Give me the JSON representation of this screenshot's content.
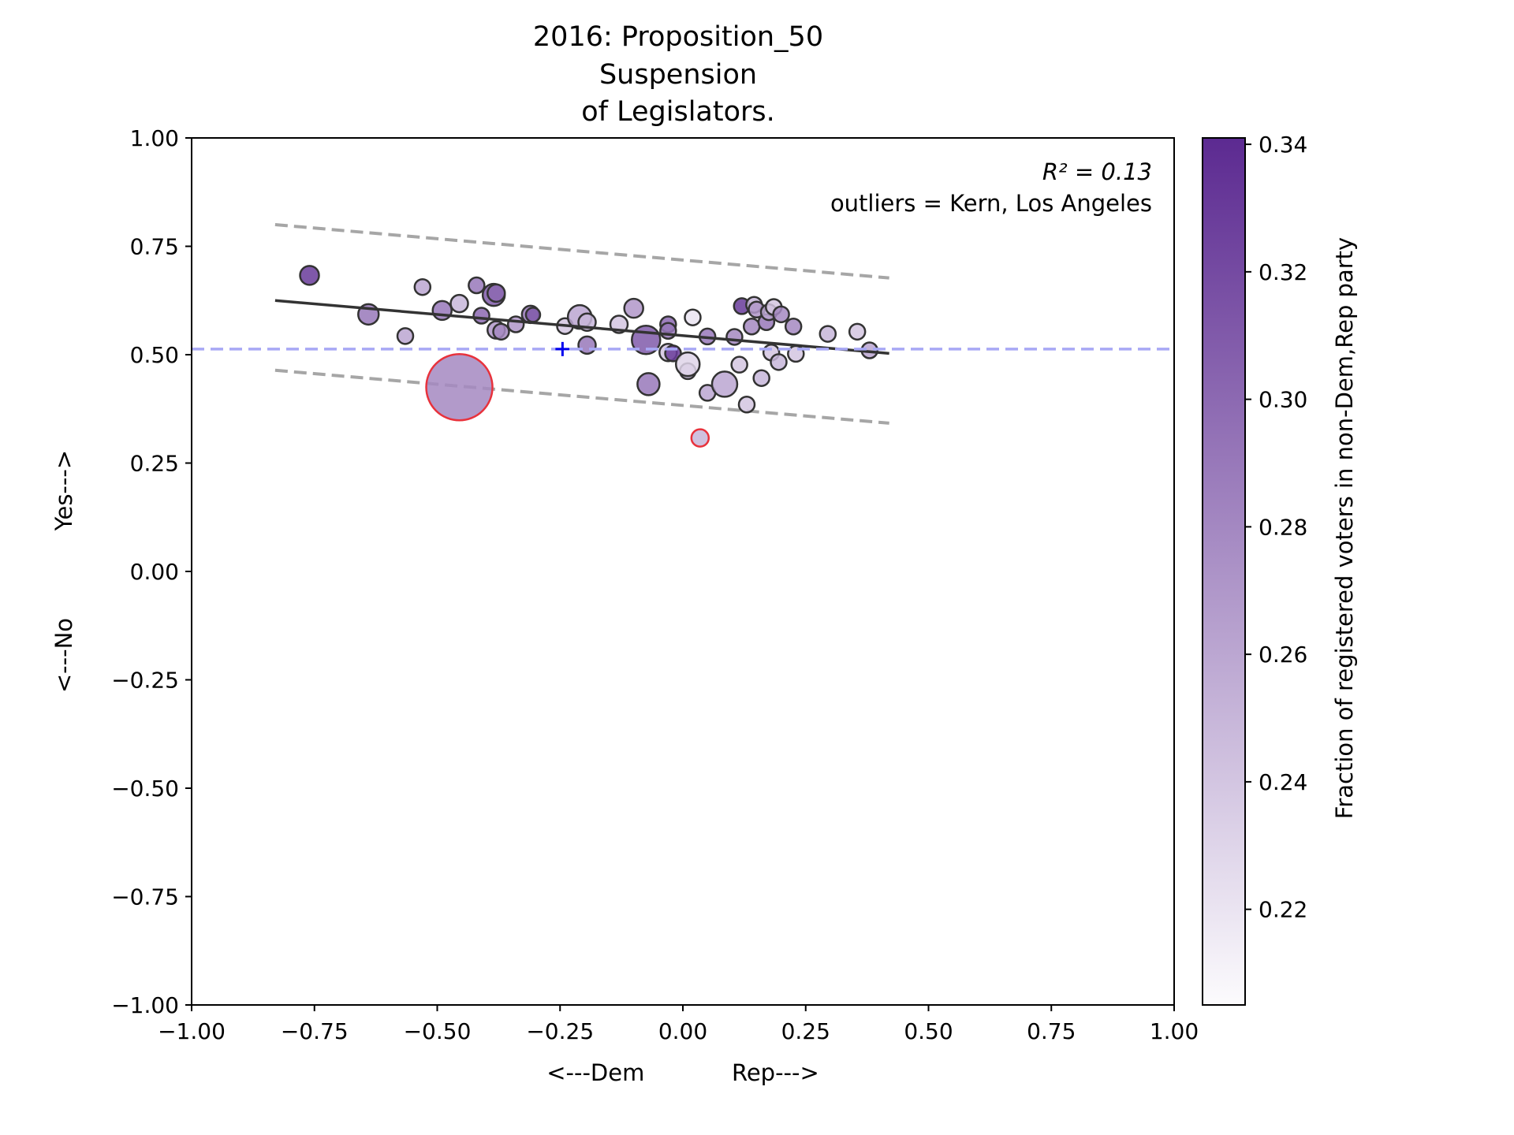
{
  "chart_data": {
    "type": "scatter",
    "title_lines": [
      "2016: Proposition_50",
      "Suspension",
      "of Legislators."
    ],
    "xlabel": "<---Dem            Rep--->",
    "ylabel": "<---No            Yes--->",
    "xlim": [
      -1.0,
      1.0
    ],
    "ylim": [
      -1.0,
      1.0
    ],
    "x_ticks": [
      "−1.00",
      "−0.75",
      "−0.50",
      "−0.25",
      "0.00",
      "0.25",
      "0.50",
      "0.75",
      "1.00"
    ],
    "y_ticks": [
      "−1.00",
      "−0.75",
      "−0.50",
      "−0.25",
      "0.00",
      "0.25",
      "0.50",
      "0.75",
      "1.00"
    ],
    "annotation_r2": "R² = 0.13",
    "annotation_outliers": "outliers = Kern, Los Angeles",
    "grid": false,
    "colorbar": {
      "label": "Fraction of registered voters in non-Dem,Rep party",
      "ticks": [
        "0.22",
        "0.24",
        "0.26",
        "0.28",
        "0.30",
        "0.32",
        "0.34"
      ],
      "tick_values": [
        0.22,
        0.24,
        0.26,
        0.28,
        0.3,
        0.32,
        0.34
      ],
      "range": [
        0.205,
        0.341
      ],
      "color_low": "#fcfbfd",
      "color_high": "#5c2a91"
    },
    "reference_line_y": 0.513,
    "reference_point": {
      "x": -0.245,
      "y": 0.513
    },
    "fit_line": {
      "x": [
        -0.83,
        0.42
      ],
      "y": [
        0.625,
        0.503
      ]
    },
    "upper_band": {
      "x": [
        -0.83,
        0.42
      ],
      "y": [
        0.8,
        0.677
      ]
    },
    "lower_band": {
      "x": [
        -0.83,
        0.42
      ],
      "y": [
        0.464,
        0.342
      ]
    },
    "points": [
      {
        "x": -0.76,
        "y": 0.683,
        "c": 0.33,
        "r": 12
      },
      {
        "x": -0.64,
        "y": 0.593,
        "c": 0.29,
        "r": 13
      },
      {
        "x": -0.565,
        "y": 0.543,
        "c": 0.26,
        "r": 10
      },
      {
        "x": -0.53,
        "y": 0.656,
        "c": 0.26,
        "r": 10
      },
      {
        "x": -0.49,
        "y": 0.602,
        "c": 0.29,
        "r": 12
      },
      {
        "x": -0.455,
        "y": 0.618,
        "c": 0.25,
        "r": 11
      },
      {
        "x": -0.42,
        "y": 0.66,
        "c": 0.29,
        "r": 10
      },
      {
        "x": -0.41,
        "y": 0.59,
        "c": 0.3,
        "r": 10
      },
      {
        "x": -0.385,
        "y": 0.638,
        "c": 0.31,
        "r": 14
      },
      {
        "x": -0.38,
        "y": 0.642,
        "c": 0.3,
        "r": 11
      },
      {
        "x": -0.38,
        "y": 0.557,
        "c": 0.27,
        "r": 11
      },
      {
        "x": -0.37,
        "y": 0.553,
        "c": 0.28,
        "r": 10
      },
      {
        "x": -0.34,
        "y": 0.57,
        "c": 0.27,
        "r": 10
      },
      {
        "x": -0.31,
        "y": 0.593,
        "c": 0.29,
        "r": 11
      },
      {
        "x": -0.305,
        "y": 0.592,
        "c": 0.31,
        "r": 9
      },
      {
        "x": -0.24,
        "y": 0.566,
        "c": 0.24,
        "r": 10
      },
      {
        "x": -0.21,
        "y": 0.587,
        "c": 0.26,
        "r": 15
      },
      {
        "x": -0.195,
        "y": 0.575,
        "c": 0.25,
        "r": 11
      },
      {
        "x": -0.195,
        "y": 0.522,
        "c": 0.29,
        "r": 11
      },
      {
        "x": -0.13,
        "y": 0.57,
        "c": 0.24,
        "r": 11
      },
      {
        "x": -0.1,
        "y": 0.607,
        "c": 0.27,
        "r": 12
      },
      {
        "x": -0.075,
        "y": 0.534,
        "c": 0.31,
        "r": 18
      },
      {
        "x": -0.07,
        "y": 0.432,
        "c": 0.29,
        "r": 14
      },
      {
        "x": -0.03,
        "y": 0.57,
        "c": 0.3,
        "r": 10
      },
      {
        "x": -0.03,
        "y": 0.555,
        "c": 0.29,
        "r": 10
      },
      {
        "x": -0.03,
        "y": 0.505,
        "c": 0.24,
        "r": 11
      },
      {
        "x": -0.02,
        "y": 0.503,
        "c": 0.33,
        "r": 10
      },
      {
        "x": 0.01,
        "y": 0.462,
        "c": 0.25,
        "r": 10
      },
      {
        "x": 0.01,
        "y": 0.478,
        "c": 0.23,
        "r": 15
      },
      {
        "x": 0.02,
        "y": 0.586,
        "c": 0.22,
        "r": 10
      },
      {
        "x": 0.05,
        "y": 0.542,
        "c": 0.29,
        "r": 10
      },
      {
        "x": 0.05,
        "y": 0.412,
        "c": 0.26,
        "r": 10
      },
      {
        "x": 0.085,
        "y": 0.432,
        "c": 0.26,
        "r": 16
      },
      {
        "x": 0.105,
        "y": 0.541,
        "c": 0.28,
        "r": 10
      },
      {
        "x": 0.115,
        "y": 0.477,
        "c": 0.24,
        "r": 10
      },
      {
        "x": 0.12,
        "y": 0.612,
        "c": 0.33,
        "r": 10
      },
      {
        "x": 0.13,
        "y": 0.385,
        "c": 0.24,
        "r": 10
      },
      {
        "x": 0.14,
        "y": 0.565,
        "c": 0.28,
        "r": 10
      },
      {
        "x": 0.145,
        "y": 0.615,
        "c": 0.25,
        "r": 10
      },
      {
        "x": 0.15,
        "y": 0.604,
        "c": 0.27,
        "r": 10
      },
      {
        "x": 0.16,
        "y": 0.446,
        "c": 0.25,
        "r": 10
      },
      {
        "x": 0.17,
        "y": 0.575,
        "c": 0.29,
        "r": 10
      },
      {
        "x": 0.175,
        "y": 0.598,
        "c": 0.26,
        "r": 10
      },
      {
        "x": 0.18,
        "y": 0.505,
        "c": 0.24,
        "r": 10
      },
      {
        "x": 0.185,
        "y": 0.61,
        "c": 0.24,
        "r": 10
      },
      {
        "x": 0.195,
        "y": 0.483,
        "c": 0.25,
        "r": 10
      },
      {
        "x": 0.2,
        "y": 0.593,
        "c": 0.28,
        "r": 10
      },
      {
        "x": 0.225,
        "y": 0.565,
        "c": 0.28,
        "r": 10
      },
      {
        "x": 0.23,
        "y": 0.502,
        "c": 0.24,
        "r": 10
      },
      {
        "x": 0.295,
        "y": 0.548,
        "c": 0.25,
        "r": 10
      },
      {
        "x": 0.355,
        "y": 0.553,
        "c": 0.24,
        "r": 10
      },
      {
        "x": 0.38,
        "y": 0.51,
        "c": 0.26,
        "r": 10
      }
    ],
    "outlier_points": [
      {
        "x": -0.455,
        "y": 0.425,
        "c": 0.28,
        "r": 42
      },
      {
        "x": 0.035,
        "y": 0.308,
        "c": 0.25,
        "r": 11
      }
    ]
  }
}
